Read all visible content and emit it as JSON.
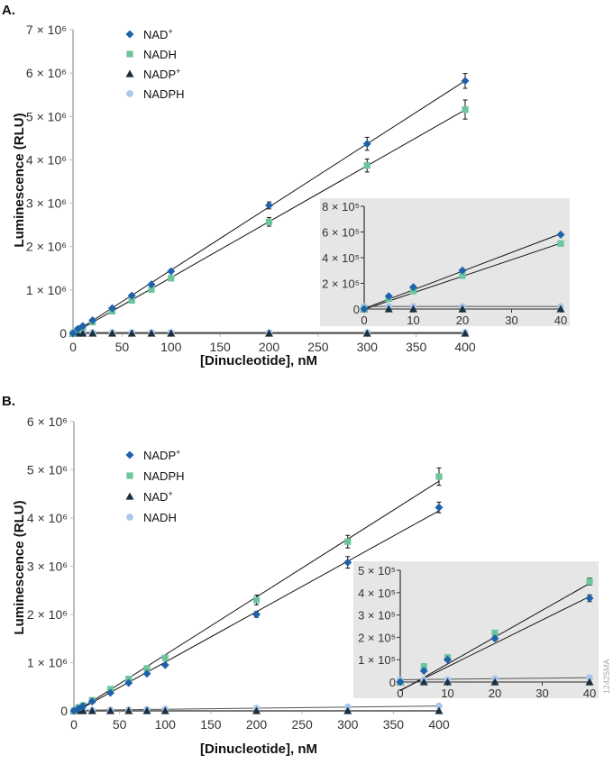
{
  "watermark": "12425MA",
  "chart_data": [
    {
      "type": "scatter",
      "panel": "A.",
      "xlabel": "[Dinucleotide], nM",
      "ylabel": "Luminescence (RLU)",
      "xlim": [
        0,
        400
      ],
      "ylim": [
        0,
        7000000
      ],
      "xticks": [
        0,
        50,
        100,
        150,
        200,
        250,
        300,
        350,
        400
      ],
      "yticks": [
        {
          "v": 0,
          "label": "0"
        },
        {
          "v": 1000000,
          "label": "1 × 10⁶"
        },
        {
          "v": 2000000,
          "label": "2 × 10⁶"
        },
        {
          "v": 3000000,
          "label": "3 × 10⁶"
        },
        {
          "v": 4000000,
          "label": "4 × 10⁶"
        },
        {
          "v": 5000000,
          "label": "5 × 10⁶"
        },
        {
          "v": 6000000,
          "label": "6 × 10⁶"
        },
        {
          "v": 7000000,
          "label": "7 × 10⁶"
        }
      ],
      "legend": "top-left",
      "x": [
        0,
        5,
        10,
        20,
        40,
        60,
        80,
        100,
        200,
        300,
        400
      ],
      "series": [
        {
          "name": "NAD+",
          "label": "NAD",
          "sup": "+",
          "marker": "diamond",
          "color": "#1f62ab",
          "values": [
            0,
            100000,
            170000,
            300000,
            580000,
            870000,
            1130000,
            1430000,
            2950000,
            4370000,
            5820000
          ],
          "errors": [
            0,
            0,
            0,
            0,
            0,
            0,
            0,
            0,
            80000,
            150000,
            170000
          ]
        },
        {
          "name": "NADH",
          "label": "NADH",
          "sup": "",
          "marker": "square",
          "color": "#6cc59c",
          "values": [
            0,
            80000,
            140000,
            260000,
            510000,
            760000,
            1010000,
            1270000,
            2570000,
            3870000,
            5160000
          ],
          "errors": [
            0,
            0,
            0,
            0,
            0,
            0,
            0,
            0,
            100000,
            150000,
            220000
          ]
        },
        {
          "name": "NADP+",
          "label": "NADP",
          "sup": "+",
          "marker": "triangle",
          "color": "#1b2f3f",
          "values": [
            0,
            0,
            0,
            0,
            0,
            0,
            0,
            0,
            0,
            0,
            0
          ],
          "errors": []
        },
        {
          "name": "NADPH",
          "label": "NADPH",
          "sup": "",
          "marker": "circle",
          "color": "#a8c7ea",
          "values": [
            20000,
            20000,
            20000,
            20000,
            20000,
            20000,
            20000,
            20000,
            20000,
            20000,
            20000
          ],
          "errors": []
        }
      ],
      "inset": {
        "xlim": [
          0,
          40
        ],
        "ylim": [
          0,
          800000
        ],
        "xticks": [
          0,
          10,
          20,
          30,
          40
        ],
        "yticks": [
          {
            "v": 0,
            "label": "0"
          },
          {
            "v": 200000,
            "label": "2 × 10⁵"
          },
          {
            "v": 400000,
            "label": "4 × 10⁵"
          },
          {
            "v": 600000,
            "label": "6 × 10⁵"
          },
          {
            "v": 800000,
            "label": "8 × 10⁵"
          }
        ]
      }
    },
    {
      "type": "scatter",
      "panel": "B.",
      "xlabel": "[Dinucleotide], nM",
      "ylabel": "Luminescence (RLU)",
      "xlim": [
        0,
        400
      ],
      "ylim": [
        0,
        6000000
      ],
      "xticks": [
        0,
        50,
        100,
        150,
        200,
        250,
        300,
        350,
        400
      ],
      "yticks": [
        {
          "v": 0,
          "label": "0"
        },
        {
          "v": 1000000,
          "label": "1 × 10⁶"
        },
        {
          "v": 2000000,
          "label": "2 × 10⁶"
        },
        {
          "v": 3000000,
          "label": "3 × 10⁶"
        },
        {
          "v": 4000000,
          "label": "4 × 10⁶"
        },
        {
          "v": 5000000,
          "label": "5 × 10⁶"
        },
        {
          "v": 6000000,
          "label": "6 × 10⁶"
        }
      ],
      "legend": "top-left",
      "x": [
        0,
        5,
        10,
        20,
        40,
        60,
        80,
        100,
        200,
        300,
        400
      ],
      "series": [
        {
          "name": "NADP+",
          "label": "NADP",
          "sup": "+",
          "marker": "diamond",
          "color": "#1f62ab",
          "values": [
            0,
            50000,
            100000,
            195000,
            375000,
            580000,
            770000,
            950000,
            2000000,
            3080000,
            4220000
          ],
          "errors": [
            0,
            0,
            0,
            10000,
            15000,
            0,
            0,
            0,
            60000,
            120000,
            110000
          ]
        },
        {
          "name": "NADPH",
          "label": "NADPH",
          "sup": "",
          "marker": "square",
          "color": "#6cc59c",
          "values": [
            0,
            70000,
            110000,
            220000,
            450000,
            660000,
            880000,
            1100000,
            2300000,
            3510000,
            4860000
          ],
          "errors": [
            0,
            0,
            0,
            0,
            15000,
            0,
            0,
            0,
            100000,
            130000,
            180000
          ]
        },
        {
          "name": "NAD+",
          "label": "NAD",
          "sup": "+",
          "marker": "triangle",
          "color": "#1b2f3f",
          "values": [
            0,
            0,
            0,
            0,
            0,
            0,
            0,
            0,
            0,
            0,
            0
          ],
          "errors": []
        },
        {
          "name": "NADH",
          "label": "NADH",
          "sup": "",
          "marker": "circle",
          "color": "#a8c7ea",
          "values": [
            10000,
            10000,
            10000,
            15000,
            20000,
            25000,
            30000,
            35000,
            55000,
            80000,
            100000
          ],
          "errors": []
        }
      ],
      "inset": {
        "xlim": [
          0,
          40
        ],
        "ylim": [
          0,
          500000
        ],
        "xticks": [
          0,
          10,
          20,
          30,
          40
        ],
        "yticks": [
          {
            "v": 0,
            "label": "0"
          },
          {
            "v": 100000,
            "label": "1 × 10⁵"
          },
          {
            "v": 200000,
            "label": "2 × 10⁵"
          },
          {
            "v": 300000,
            "label": "3 × 10⁵"
          },
          {
            "v": 400000,
            "label": "4 × 10⁵"
          },
          {
            "v": 500000,
            "label": "5 × 10⁵"
          }
        ]
      }
    }
  ]
}
